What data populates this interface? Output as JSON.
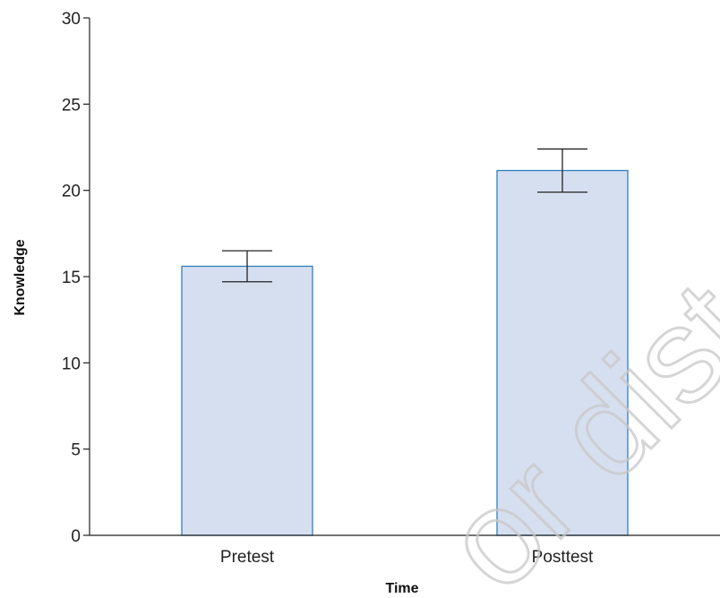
{
  "chart_data": {
    "type": "bar",
    "categories": [
      "Pretest",
      "Posttest"
    ],
    "values": [
      15.6,
      21.15
    ],
    "error_bars": [
      {
        "lower": 14.7,
        "upper": 16.5
      },
      {
        "lower": 19.9,
        "upper": 22.4
      }
    ],
    "xlabel": "Time",
    "ylabel": "Knowledge",
    "ylim": [
      0,
      30
    ],
    "yticks": [
      0,
      5,
      10,
      15,
      20,
      25,
      30
    ],
    "grid": false
  },
  "colors": {
    "bar_fill": "#d6dff0",
    "bar_stroke": "#2f7fbf",
    "axis": "#222222",
    "error_bar": "#222222"
  },
  "watermark": "or dist"
}
